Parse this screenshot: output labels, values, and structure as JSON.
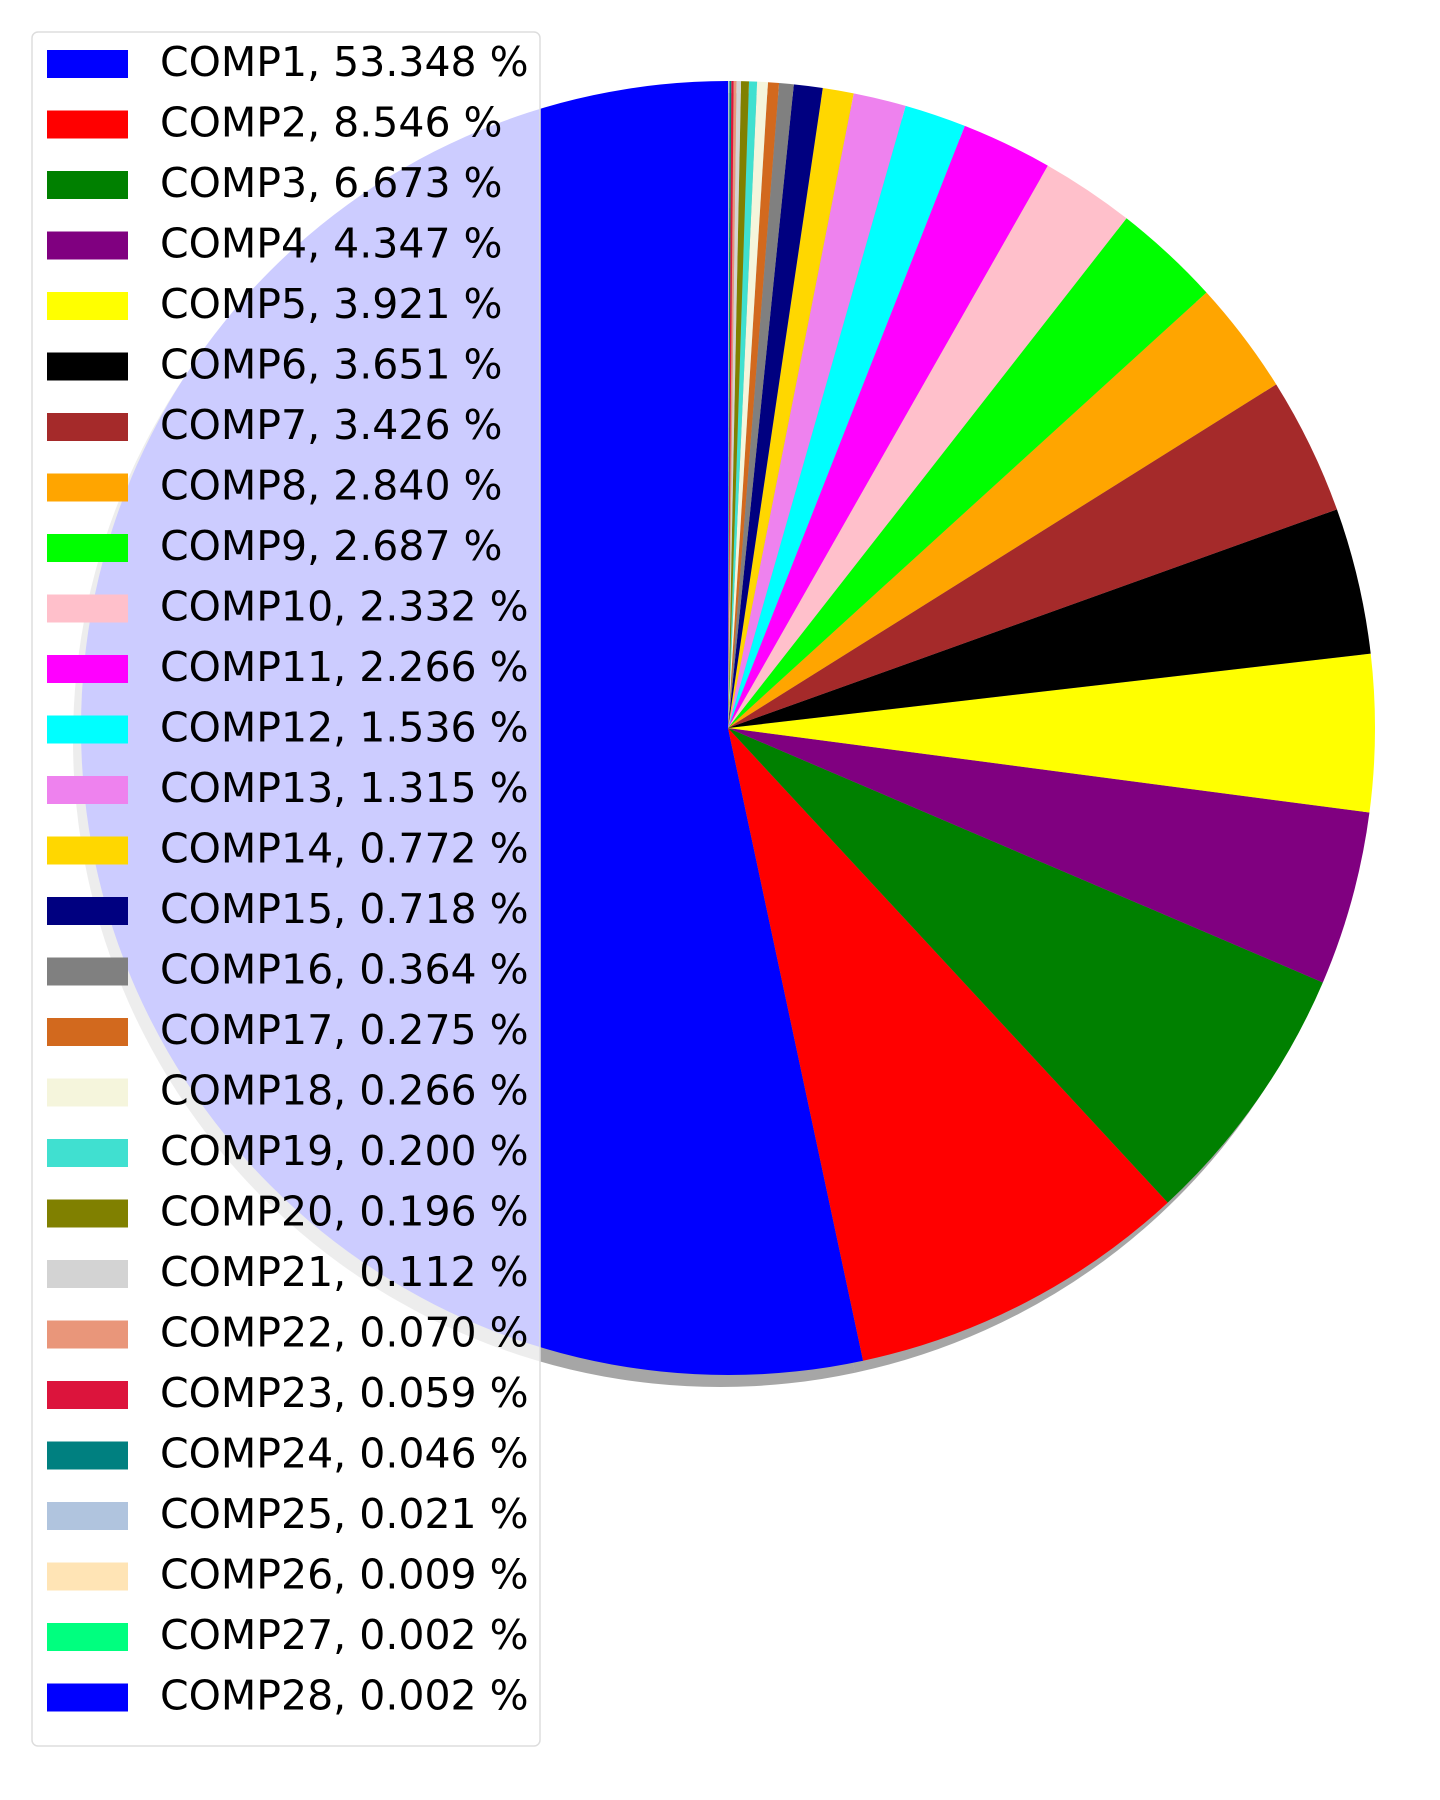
{
  "chart_data": {
    "type": "pie",
    "title": "",
    "start_angle_deg": 90,
    "direction": "counterclockwise",
    "shadow": true,
    "legend_position": "upper-left",
    "slices": [
      {
        "label": "COMP1",
        "value": 53.348,
        "legend": "COMP1, 53.348 %",
        "color": "#0000ff"
      },
      {
        "label": "COMP2",
        "value": 8.546,
        "legend": "COMP2, 8.546 %",
        "color": "#ff0000"
      },
      {
        "label": "COMP3",
        "value": 6.673,
        "legend": "COMP3, 6.673 %",
        "color": "#008000"
      },
      {
        "label": "COMP4",
        "value": 4.347,
        "legend": "COMP4, 4.347 %",
        "color": "#800080"
      },
      {
        "label": "COMP5",
        "value": 3.921,
        "legend": "COMP5, 3.921 %",
        "color": "#ffff00"
      },
      {
        "label": "COMP6",
        "value": 3.651,
        "legend": "COMP6, 3.651 %",
        "color": "#000000"
      },
      {
        "label": "COMP7",
        "value": 3.426,
        "legend": "COMP7, 3.426 %",
        "color": "#a52a2a"
      },
      {
        "label": "COMP8",
        "value": 2.84,
        "legend": "COMP8, 2.840 %",
        "color": "#ffa500"
      },
      {
        "label": "COMP9",
        "value": 2.687,
        "legend": "COMP9, 2.687 %",
        "color": "#00ff00"
      },
      {
        "label": "COMP10",
        "value": 2.332,
        "legend": "COMP10, 2.332 %",
        "color": "#ffc0cb"
      },
      {
        "label": "COMP11",
        "value": 2.266,
        "legend": "COMP11, 2.266 %",
        "color": "#ff00ff"
      },
      {
        "label": "COMP12",
        "value": 1.536,
        "legend": "COMP12, 1.536 %",
        "color": "#00ffff"
      },
      {
        "label": "COMP13",
        "value": 1.315,
        "legend": "COMP13, 1.315 %",
        "color": "#ee82ee"
      },
      {
        "label": "COMP14",
        "value": 0.772,
        "legend": "COMP14, 0.772 %",
        "color": "#ffd700"
      },
      {
        "label": "COMP15",
        "value": 0.718,
        "legend": "COMP15, 0.718 %",
        "color": "#000080"
      },
      {
        "label": "COMP16",
        "value": 0.364,
        "legend": "COMP16, 0.364 %",
        "color": "#808080"
      },
      {
        "label": "COMP17",
        "value": 0.275,
        "legend": "COMP17, 0.275 %",
        "color": "#d2691e"
      },
      {
        "label": "COMP18",
        "value": 0.266,
        "legend": "COMP18, 0.266 %",
        "color": "#f5f5dc"
      },
      {
        "label": "COMP19",
        "value": 0.2,
        "legend": "COMP19, 0.200 %",
        "color": "#40e0d0"
      },
      {
        "label": "COMP20",
        "value": 0.196,
        "legend": "COMP20, 0.196 %",
        "color": "#808000"
      },
      {
        "label": "COMP21",
        "value": 0.112,
        "legend": "COMP21, 0.112 %",
        "color": "#d3d3d3"
      },
      {
        "label": "COMP22",
        "value": 0.07,
        "legend": "COMP22, 0.070 %",
        "color": "#e9967a"
      },
      {
        "label": "COMP23",
        "value": 0.059,
        "legend": "COMP23, 0.059 %",
        "color": "#dc143c"
      },
      {
        "label": "COMP24",
        "value": 0.046,
        "legend": "COMP24, 0.046 %",
        "color": "#008080"
      },
      {
        "label": "COMP25",
        "value": 0.021,
        "legend": "COMP25, 0.021 %",
        "color": "#b0c4de"
      },
      {
        "label": "COMP26",
        "value": 0.009,
        "legend": "COMP26, 0.009 %",
        "color": "#ffe4b5"
      },
      {
        "label": "COMP27",
        "value": 0.002,
        "legend": "COMP27, 0.002 %",
        "color": "#00ff7f"
      },
      {
        "label": "COMP28",
        "value": 0.002,
        "legend": "COMP28, 0.002 %",
        "color": "#0000ff"
      }
    ]
  }
}
